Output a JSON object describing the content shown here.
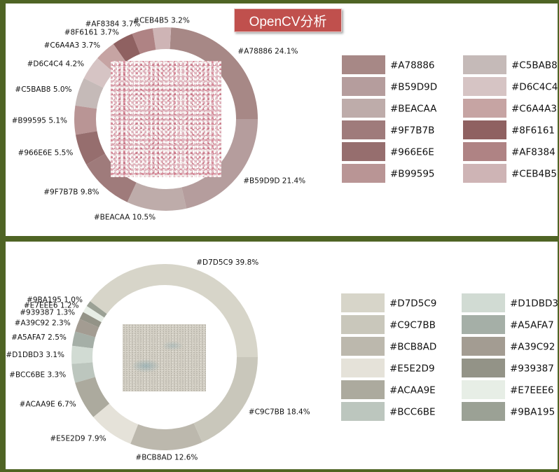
{
  "badge": {
    "label": "OpenCV分析"
  },
  "chart_data": [
    {
      "type": "pie",
      "title": "",
      "slices": [
        {
          "name": "#A78886",
          "value": 24.1,
          "color": "#A78886",
          "label": "#A78886 24.1%"
        },
        {
          "name": "#CEB4B5",
          "value": 3.2,
          "color": "#CEB4B5",
          "label": "#CEB4B5 3.2%"
        },
        {
          "name": "#AF8384",
          "value": 3.7,
          "color": "#AF8384",
          "label": "#AF8384 3.7%"
        },
        {
          "name": "#8F6161",
          "value": 3.7,
          "color": "#8F6161",
          "label": "#8F6161 3.7%"
        },
        {
          "name": "#C6A4A3",
          "value": 3.7,
          "color": "#C6A4A3",
          "label": "#C6A4A3 3.7%"
        },
        {
          "name": "#D6C4C4",
          "value": 4.2,
          "color": "#D6C4C4",
          "label": "#D6C4C4 4.2%"
        },
        {
          "name": "#C5BAB8",
          "value": 5.0,
          "color": "#C5BAB8",
          "label": "#C5BAB8 5.0%"
        },
        {
          "name": "#B99595",
          "value": 5.1,
          "color": "#B99595",
          "label": "#B99595 5.1%"
        },
        {
          "name": "#966E6E",
          "value": 5.5,
          "color": "#966E6E",
          "label": "#966E6E 5.5%"
        },
        {
          "name": "#9F7B7B",
          "value": 9.8,
          "color": "#9F7B7B",
          "label": "#9F7B7B 9.8%"
        },
        {
          "name": "#BEACAA",
          "value": 10.5,
          "color": "#BEACAA",
          "label": "#BEACAA 10.5%"
        },
        {
          "name": "#B59D9D",
          "value": 21.4,
          "color": "#B59D9D",
          "label": "#B59D9D 21.4%"
        }
      ],
      "swatches": [
        [
          "#A78886",
          "#B59D9D",
          "#BEACAA",
          "#9F7B7B",
          "#966E6E",
          "#B99595"
        ],
        [
          "#C5BAB8",
          "#D6C4C4",
          "#C6A4A3",
          "#8F6161",
          "#AF8384",
          "#CEB4B5"
        ]
      ]
    },
    {
      "type": "pie",
      "title": "",
      "slices": [
        {
          "name": "#D7D5C9",
          "value": 39.8,
          "color": "#D7D5C9",
          "label": "#D7D5C9 39.8%"
        },
        {
          "name": "#9BA195",
          "value": 1.0,
          "color": "#9BA195",
          "label": "#9BA195 1.0%"
        },
        {
          "name": "#E7EEE6",
          "value": 1.2,
          "color": "#E7EEE6",
          "label": "#E7EEE6 1.2%"
        },
        {
          "name": "#939387",
          "value": 1.3,
          "color": "#939387",
          "label": "#939387 1.3%"
        },
        {
          "name": "#A39C92",
          "value": 2.3,
          "color": "#A39C92",
          "label": "#A39C92 2.3%"
        },
        {
          "name": "#A5AFA7",
          "value": 2.5,
          "color": "#A5AFA7",
          "label": "#A5AFA7 2.5%"
        },
        {
          "name": "#D1DBD3",
          "value": 3.1,
          "color": "#D1DBD3",
          "label": "#D1DBD3 3.1%"
        },
        {
          "name": "#BCC6BE",
          "value": 3.3,
          "color": "#BCC6BE",
          "label": "#BCC6BE 3.3%"
        },
        {
          "name": "#ACAA9E",
          "value": 6.7,
          "color": "#ACAA9E",
          "label": "#ACAA9E 6.7%"
        },
        {
          "name": "#E5E2D9",
          "value": 7.9,
          "color": "#E5E2D9",
          "label": "#E5E2D9 7.9%"
        },
        {
          "name": "#BCB8AD",
          "value": 12.6,
          "color": "#BCB8AD",
          "label": "#BCB8AD 12.6%"
        },
        {
          "name": "#C9C7BB",
          "value": 18.4,
          "color": "#C9C7BB",
          "label": "#C9C7BB 18.4%"
        }
      ],
      "swatches": [
        [
          "#D7D5C9",
          "#C9C7BB",
          "#BCB8AD",
          "#E5E2D9",
          "#ACAA9E",
          "#BCC6BE"
        ],
        [
          "#D1DBD3",
          "#A5AFA7",
          "#A39C92",
          "#939387",
          "#E7EEE6",
          "#9BA195"
        ]
      ]
    }
  ]
}
